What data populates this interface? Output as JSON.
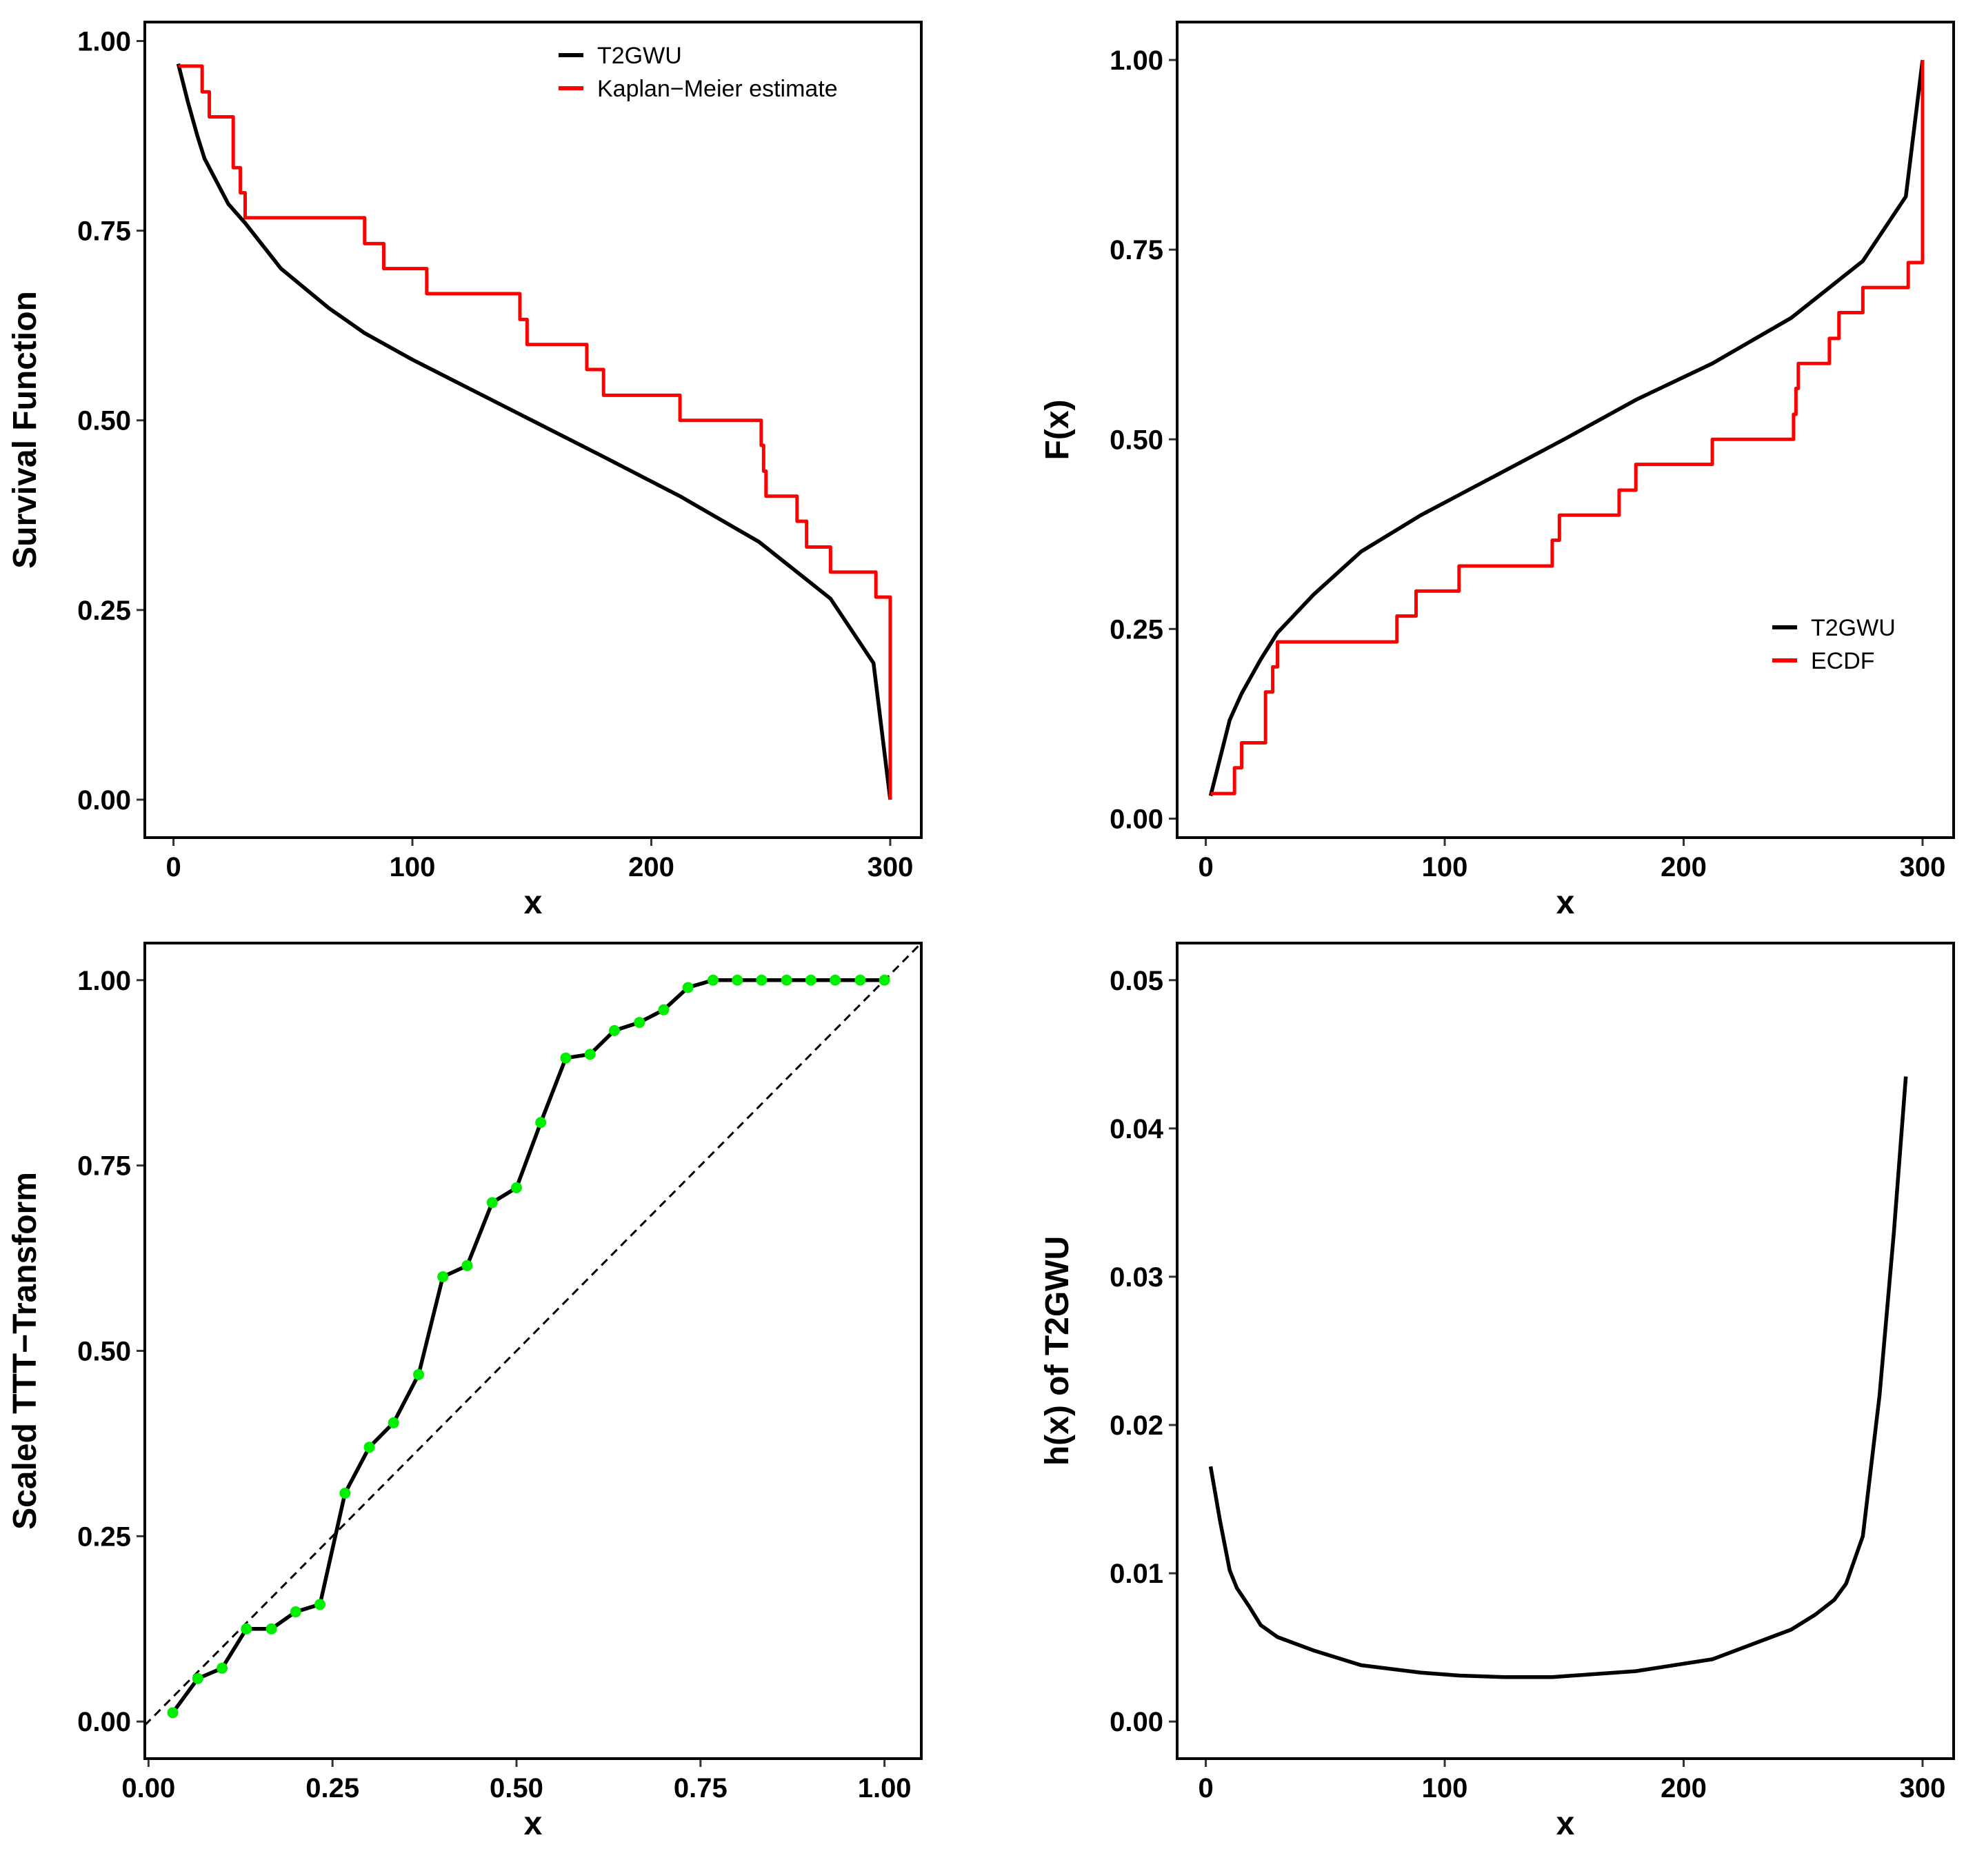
{
  "colors": {
    "model": "#000000",
    "empirical": "#ff0000",
    "points": "#00ee00",
    "reference": "#000000"
  },
  "chart_data": [
    {
      "id": "survival",
      "type": "line",
      "xlabel": "x",
      "ylabel": "Survival Function",
      "xlim": [
        -12,
        313
      ],
      "ylim": [
        -0.05,
        1.025
      ],
      "xticks": [
        0,
        100,
        200,
        300
      ],
      "xtick_labels": [
        "0",
        "100",
        "200",
        "300"
      ],
      "yticks": [
        0,
        0.25,
        0.5,
        0.75,
        1
      ],
      "ytick_labels": [
        "0.00",
        "0.25",
        "0.50",
        "0.75",
        "1.00"
      ],
      "legend": {
        "position": "top-right",
        "entries": [
          "T2GWU",
          "Kaplan−Meier estimate"
        ]
      },
      "series": [
        {
          "name": "T2GWU",
          "style": "line",
          "color": "model",
          "x": [
            2,
            6,
            10,
            13,
            18,
            23,
            30,
            45,
            65,
            80,
            100,
            120,
            150,
            180,
            212,
            245,
            263,
            275,
            293,
            300
          ],
          "y": [
            0.97,
            0.92,
            0.875,
            0.845,
            0.815,
            0.785,
            0.76,
            0.7,
            0.648,
            0.615,
            0.58,
            0.548,
            0.5,
            0.452,
            0.4,
            0.34,
            0.295,
            0.265,
            0.18,
            0.0
          ]
        },
        {
          "name": "Kaplan−Meier estimate",
          "style": "step",
          "color": "empirical",
          "x": [
            2,
            10,
            12,
            15,
            23,
            25,
            28,
            30,
            65,
            80,
            88,
            106,
            145,
            148,
            173,
            180,
            212,
            246,
            247,
            248,
            261,
            265,
            275,
            294,
            300,
            300
          ],
          "y": [
            0.967,
            0.967,
            0.933,
            0.9,
            0.9,
            0.833,
            0.8,
            0.767,
            0.767,
            0.733,
            0.7,
            0.667,
            0.633,
            0.6,
            0.567,
            0.533,
            0.5,
            0.467,
            0.433,
            0.4,
            0.367,
            0.333,
            0.3,
            0.267,
            0.267,
            0.0
          ]
        }
      ]
    },
    {
      "id": "cdf",
      "type": "line",
      "xlabel": "x",
      "ylabel": "F(x)",
      "xlim": [
        -12,
        313
      ],
      "ylim": [
        -0.025,
        1.05
      ],
      "xticks": [
        0,
        100,
        200,
        300
      ],
      "xtick_labels": [
        "0",
        "100",
        "200",
        "300"
      ],
      "yticks": [
        0,
        0.25,
        0.5,
        0.75,
        1
      ],
      "ytick_labels": [
        "0.00",
        "0.25",
        "0.50",
        "0.75",
        "1.00"
      ],
      "legend": {
        "position": "right",
        "entries": [
          "T2GWU",
          "ECDF"
        ]
      },
      "series": [
        {
          "name": "T2GWU",
          "style": "line",
          "color": "model",
          "x": [
            2,
            6,
            10,
            15,
            23,
            30,
            45,
            65,
            90,
            120,
            150,
            180,
            212,
            245,
            263,
            275,
            293,
            300
          ],
          "y": [
            0.03,
            0.08,
            0.13,
            0.165,
            0.21,
            0.245,
            0.295,
            0.352,
            0.4,
            0.45,
            0.5,
            0.552,
            0.6,
            0.66,
            0.705,
            0.735,
            0.82,
            1.0
          ]
        },
        {
          "name": "ECDF",
          "style": "step",
          "color": "empirical",
          "x": [
            2,
            10,
            12,
            15,
            23,
            25,
            28,
            30,
            65,
            80,
            88,
            106,
            145,
            148,
            173,
            180,
            212,
            246,
            247,
            248,
            261,
            265,
            275,
            294,
            300,
            300
          ],
          "y": [
            0.033,
            0.033,
            0.067,
            0.1,
            0.1,
            0.167,
            0.2,
            0.233,
            0.233,
            0.267,
            0.3,
            0.333,
            0.367,
            0.4,
            0.433,
            0.467,
            0.5,
            0.533,
            0.567,
            0.6,
            0.633,
            0.667,
            0.7,
            0.733,
            0.733,
            1.0
          ]
        }
      ]
    },
    {
      "id": "ttt",
      "type": "line",
      "xlabel": "x",
      "ylabel": "Scaled TTT−Transform",
      "xlim": [
        -0.005,
        1.05
      ],
      "ylim": [
        -0.05,
        1.05
      ],
      "xticks": [
        0,
        0.25,
        0.5,
        0.75,
        1
      ],
      "xtick_labels": [
        "0.00",
        "0.25",
        "0.50",
        "0.75",
        "1.00"
      ],
      "yticks": [
        0,
        0.25,
        0.5,
        0.75,
        1
      ],
      "ytick_labels": [
        "0.00",
        "0.25",
        "0.50",
        "0.75",
        "1.00"
      ],
      "legend": null,
      "reference_line": {
        "x": [
          -0.005,
          1.05
        ],
        "y": [
          -0.005,
          1.05
        ],
        "style": "dashed"
      },
      "series": [
        {
          "name": "Scaled TTT−Transform",
          "style": "line-points",
          "color": "model",
          "point_color": "points",
          "x": [
            0.033,
            0.067,
            0.1,
            0.133,
            0.167,
            0.2,
            0.233,
            0.267,
            0.3,
            0.333,
            0.367,
            0.4,
            0.433,
            0.467,
            0.5,
            0.533,
            0.567,
            0.6,
            0.633,
            0.667,
            0.7,
            0.733,
            0.767,
            0.8,
            0.833,
            0.867,
            0.9,
            0.933,
            0.967,
            1.0
          ],
          "y": [
            0.012,
            0.058,
            0.072,
            0.125,
            0.125,
            0.148,
            0.158,
            0.308,
            0.37,
            0.403,
            0.468,
            0.6,
            0.615,
            0.7,
            0.72,
            0.808,
            0.895,
            0.9,
            0.932,
            0.943,
            0.96,
            0.99,
            1.0,
            1.0,
            1.0,
            1.0,
            1.0,
            1.0,
            1.0,
            1.0
          ]
        }
      ]
    },
    {
      "id": "hazard",
      "type": "line",
      "xlabel": "x",
      "ylabel": "h(x) of T2GWU",
      "xlim": [
        -12,
        313
      ],
      "ylim": [
        -0.0025,
        0.0525
      ],
      "xticks": [
        0,
        100,
        200,
        300
      ],
      "xtick_labels": [
        "0",
        "100",
        "200",
        "300"
      ],
      "yticks": [
        0,
        0.01,
        0.02,
        0.03,
        0.04,
        0.05
      ],
      "ytick_labels": [
        "0.00",
        "0.01",
        "0.02",
        "0.03",
        "0.04",
        "0.05"
      ],
      "legend": null,
      "series": [
        {
          "name": "T2GWU",
          "style": "line",
          "color": "model",
          "x": [
            2,
            6,
            10,
            13,
            18,
            23,
            30,
            45,
            65,
            90,
            106,
            125,
            145,
            180,
            212,
            245,
            255,
            263,
            268,
            275,
            282,
            288,
            293
          ],
          "y": [
            0.0172,
            0.0135,
            0.0102,
            0.009,
            0.0078,
            0.0065,
            0.0057,
            0.0048,
            0.0038,
            0.0033,
            0.0031,
            0.003,
            0.003,
            0.0034,
            0.0042,
            0.0062,
            0.0072,
            0.0082,
            0.0093,
            0.0125,
            0.022,
            0.033,
            0.0435
          ]
        }
      ]
    }
  ]
}
